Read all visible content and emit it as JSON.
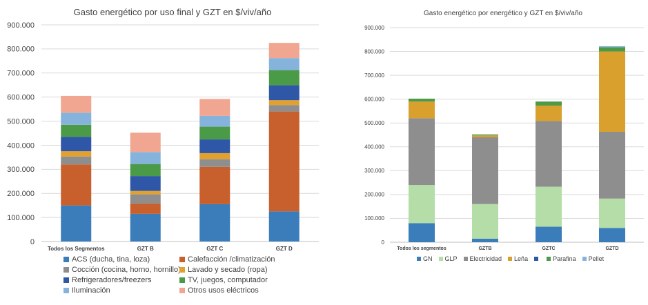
{
  "chart_data": [
    {
      "type": "bar",
      "stacked": true,
      "title": "Gasto energético por uso final  y  GZT en $/viv/año",
      "categories": [
        "Todos los Segmentos",
        "GZT B",
        "GZT C",
        "GZT D"
      ],
      "ylim": [
        0,
        900000
      ],
      "yticks": [
        "0",
        "100.000",
        "200.000",
        "300.000",
        "400.000",
        "500.000",
        "600.000",
        "700.000",
        "800.000",
        "900.000"
      ],
      "legend_position": "bottom",
      "series": [
        {
          "name": "ACS (ducha, tina, loza)",
          "color": "#3A7DBA",
          "values": [
            150000,
            115000,
            155000,
            125000
          ]
        },
        {
          "name": "Calefacción /climatización",
          "color": "#C8602D",
          "values": [
            170000,
            43000,
            155000,
            415000
          ]
        },
        {
          "name": "Cocción  (cocina, horno, hornillo)",
          "color": "#8E8E8E",
          "values": [
            33000,
            38000,
            32000,
            27000
          ]
        },
        {
          "name": "Lavado y secado  (ropa)",
          "color": "#E2A02E",
          "values": [
            22000,
            14000,
            25000,
            20000
          ]
        },
        {
          "name": "Refrigeradores/freezers",
          "color": "#2E57A7",
          "values": [
            60000,
            62000,
            57000,
            62000
          ]
        },
        {
          "name": "TV, juegos, computador",
          "color": "#4A9A48",
          "values": [
            50000,
            50000,
            53000,
            63000
          ]
        },
        {
          "name": "Iluminación",
          "color": "#86B3DC",
          "values": [
            50000,
            50000,
            45000,
            50000
          ]
        },
        {
          "name": "Otros usos eléctricos",
          "color": "#F0A690",
          "values": [
            70000,
            80000,
            70000,
            63000
          ]
        }
      ]
    },
    {
      "type": "bar",
      "stacked": true,
      "title": "Gasto energético por energético y  GZT en $/viv/año",
      "categories": [
        "Todos los segmentos",
        "GZTB",
        "GZTC",
        "GZTD"
      ],
      "ylim": [
        0,
        900000
      ],
      "yticks": [
        "0",
        "100.000",
        "200.000",
        "300.000",
        "400.000",
        "500.000",
        "600.000",
        "700.000",
        "800.000",
        "900.000"
      ],
      "legend_position": "bottom",
      "series": [
        {
          "name": "GN",
          "color": "#3A7DBA",
          "values": [
            80000,
            15000,
            65000,
            60000
          ]
        },
        {
          "name": "GLP",
          "color": "#B5DDA8",
          "values": [
            160000,
            145000,
            168000,
            123000
          ]
        },
        {
          "name": "Electricidad",
          "color": "#8E8E8E",
          "values": [
            280000,
            280000,
            275000,
            280000
          ]
        },
        {
          "name": "Leña",
          "color": "#D9A02E",
          "values": [
            70000,
            8000,
            65000,
            337000
          ]
        },
        {
          "name": "",
          "color": "#2E57A7",
          "values": [
            0,
            0,
            0,
            0
          ]
        },
        {
          "name": "Parafina",
          "color": "#4A9A48",
          "values": [
            12000,
            4000,
            17000,
            18000
          ]
        },
        {
          "name": "Pellet",
          "color": "#86B3DC",
          "values": [
            0,
            0,
            0,
            4000
          ]
        }
      ]
    }
  ]
}
